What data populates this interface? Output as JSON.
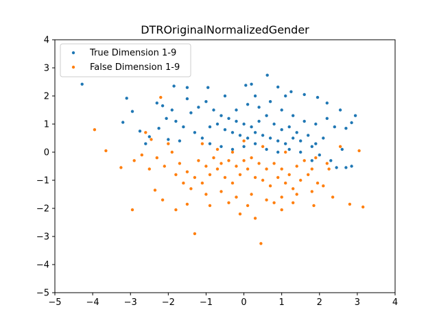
{
  "chart_data": {
    "type": "scatter",
    "title": "DTROriginalNormalizedGender",
    "xlabel": "",
    "ylabel": "",
    "xlim": [
      -5,
      4
    ],
    "ylim": [
      -5,
      4
    ],
    "xticks": [
      -5,
      -4,
      -3,
      -2,
      -1,
      0,
      1,
      2,
      3,
      4
    ],
    "yticks": [
      -5,
      -4,
      -3,
      -2,
      -1,
      0,
      1,
      2,
      3,
      4
    ],
    "grid": false,
    "legend_position": "top-left",
    "series": [
      {
        "name": "True Dimension 1-9",
        "color": "#1f77b4",
        "points": [
          [
            -4.28,
            2.42
          ],
          [
            -3.1,
            1.92
          ],
          [
            -2.95,
            1.45
          ],
          [
            -3.2,
            1.06
          ],
          [
            -2.75,
            0.75
          ],
          [
            0.62,
            2.74
          ],
          [
            -1.85,
            2.35
          ],
          [
            -1.5,
            2.3
          ],
          [
            -0.95,
            2.3
          ],
          [
            0.2,
            2.42
          ],
          [
            0.05,
            2.38
          ],
          [
            0.9,
            2.32
          ],
          [
            1.25,
            2.15
          ],
          [
            1.6,
            2.05
          ],
          [
            1.95,
            1.95
          ],
          [
            2.2,
            1.75
          ],
          [
            2.55,
            1.5
          ],
          [
            2.85,
            1.05
          ],
          [
            2.95,
            1.3
          ],
          [
            2.7,
            0.85
          ],
          [
            2.6,
            0.1
          ],
          [
            2.85,
            -0.5
          ],
          [
            2.7,
            -0.55
          ],
          [
            2.45,
            -0.55
          ],
          [
            2.3,
            -0.3
          ],
          [
            -2.3,
            1.75
          ],
          [
            -2.15,
            1.65
          ],
          [
            -2.05,
            1.2
          ],
          [
            -2.25,
            0.85
          ],
          [
            -2.5,
            0.55
          ],
          [
            -2.6,
            0.3
          ],
          [
            -2.0,
            0.45
          ],
          [
            -1.7,
            0.4
          ],
          [
            1.8,
            -0.3
          ],
          [
            2.0,
            -0.1
          ],
          [
            -1.4,
            1.4
          ],
          [
            -1.2,
            1.6
          ],
          [
            -1.0,
            1.8
          ],
          [
            -0.8,
            1.5
          ],
          [
            -0.6,
            1.3
          ],
          [
            -0.4,
            1.2
          ],
          [
            -0.2,
            1.1
          ],
          [
            0.0,
            1.0
          ],
          [
            0.2,
            0.9
          ],
          [
            0.4,
            1.1
          ],
          [
            0.6,
            1.3
          ],
          [
            0.8,
            1.0
          ],
          [
            1.0,
            0.8
          ],
          [
            1.2,
            0.9
          ],
          [
            1.4,
            0.7
          ],
          [
            -0.9,
            0.9
          ],
          [
            -0.7,
            1.0
          ],
          [
            -0.5,
            0.8
          ],
          [
            -0.3,
            0.7
          ],
          [
            -0.1,
            0.6
          ],
          [
            0.1,
            0.5
          ],
          [
            0.3,
            0.7
          ],
          [
            0.5,
            0.6
          ],
          [
            0.7,
            0.5
          ],
          [
            0.9,
            0.4
          ],
          [
            1.1,
            0.3
          ],
          [
            1.3,
            0.5
          ],
          [
            1.5,
            0.4
          ],
          [
            1.7,
            0.6
          ],
          [
            1.9,
            0.3
          ],
          [
            -1.6,
            0.9
          ],
          [
            -1.8,
            1.1
          ],
          [
            -1.3,
            0.7
          ],
          [
            -1.1,
            0.5
          ],
          [
            -0.9,
            0.3
          ],
          [
            -0.6,
            0.2
          ],
          [
            -0.3,
            0.1
          ],
          [
            0.0,
            0.2
          ],
          [
            0.3,
            0.3
          ],
          [
            0.6,
            0.1
          ],
          [
            0.9,
            0.0
          ],
          [
            1.2,
            0.1
          ],
          [
            1.5,
            0.0
          ],
          [
            1.8,
            0.2
          ],
          [
            2.1,
            0.5
          ],
          [
            -0.2,
            1.5
          ],
          [
            0.1,
            1.7
          ],
          [
            0.4,
            1.6
          ],
          [
            0.7,
            1.8
          ],
          [
            1.0,
            1.5
          ],
          [
            1.3,
            1.3
          ],
          [
            1.6,
            1.1
          ],
          [
            1.9,
            1.0
          ],
          [
            2.2,
            1.2
          ],
          [
            2.4,
            0.9
          ],
          [
            -1.9,
            1.5
          ],
          [
            -1.5,
            1.9
          ],
          [
            -0.5,
            2.0
          ],
          [
            0.3,
            2.0
          ],
          [
            1.1,
            2.0
          ]
        ]
      },
      {
        "name": "False Dimension 1-9",
        "color": "#ff7f0e",
        "points": [
          [
            -3.95,
            0.8
          ],
          [
            -3.65,
            0.05
          ],
          [
            -3.25,
            -0.55
          ],
          [
            -2.95,
            -2.05
          ],
          [
            -2.9,
            -0.3
          ],
          [
            -1.3,
            -2.9
          ],
          [
            0.45,
            -3.25
          ],
          [
            0.3,
            -2.35
          ],
          [
            -0.1,
            -2.2
          ],
          [
            1.0,
            -2.05
          ],
          [
            1.85,
            -1.9
          ],
          [
            2.35,
            -1.6
          ],
          [
            2.8,
            -1.85
          ],
          [
            3.15,
            -1.95
          ],
          [
            3.05,
            0.05
          ],
          [
            2.55,
            0.2
          ],
          [
            2.25,
            -0.6
          ],
          [
            1.95,
            -1.1
          ],
          [
            -2.7,
            -0.1
          ],
          [
            -2.5,
            -0.6
          ],
          [
            -2.35,
            -1.35
          ],
          [
            -2.15,
            -1.7
          ],
          [
            -1.8,
            -2.05
          ],
          [
            -1.5,
            -1.85
          ],
          [
            -2.6,
            0.7
          ],
          [
            -2.45,
            0.45
          ],
          [
            -2.2,
            1.95
          ],
          [
            -2.0,
            0.3
          ],
          [
            -1.9,
            0.0
          ],
          [
            -1.7,
            -0.4
          ],
          [
            -1.5,
            -0.7
          ],
          [
            -1.3,
            -0.9
          ],
          [
            -1.1,
            -1.1
          ],
          [
            -0.9,
            -0.8
          ],
          [
            -0.7,
            -0.6
          ],
          [
            -0.5,
            -0.9
          ],
          [
            -0.3,
            -1.1
          ],
          [
            -0.1,
            -0.8
          ],
          [
            0.1,
            -0.6
          ],
          [
            0.3,
            -0.9
          ],
          [
            0.5,
            -1.0
          ],
          [
            0.7,
            -1.2
          ],
          [
            0.9,
            -0.9
          ],
          [
            1.1,
            -1.1
          ],
          [
            1.3,
            -1.3
          ],
          [
            1.5,
            -1.0
          ],
          [
            1.7,
            -0.8
          ],
          [
            -1.2,
            -0.3
          ],
          [
            -1.0,
            -0.5
          ],
          [
            -0.8,
            -0.2
          ],
          [
            -0.6,
            -0.4
          ],
          [
            -0.4,
            -0.3
          ],
          [
            -0.2,
            -0.5
          ],
          [
            0.0,
            -0.3
          ],
          [
            0.2,
            -0.2
          ],
          [
            0.4,
            -0.4
          ],
          [
            0.6,
            -0.6
          ],
          [
            0.8,
            -0.4
          ],
          [
            1.0,
            -0.6
          ],
          [
            1.2,
            -0.8
          ],
          [
            1.4,
            -0.5
          ],
          [
            1.6,
            -0.3
          ],
          [
            1.8,
            -0.6
          ],
          [
            -1.4,
            -1.3
          ],
          [
            -1.0,
            -1.5
          ],
          [
            -0.6,
            -1.4
          ],
          [
            -0.2,
            -1.6
          ],
          [
            0.2,
            -1.5
          ],
          [
            0.6,
            -1.7
          ],
          [
            1.0,
            -1.6
          ],
          [
            1.4,
            -1.5
          ],
          [
            1.8,
            -1.4
          ],
          [
            2.1,
            -1.2
          ],
          [
            -0.9,
            -1.9
          ],
          [
            -0.4,
            -1.8
          ],
          [
            0.1,
            -1.9
          ],
          [
            0.8,
            -1.8
          ],
          [
            1.3,
            -1.8
          ],
          [
            -1.6,
            -1.1
          ],
          [
            -1.8,
            -0.8
          ],
          [
            -2.1,
            -0.5
          ],
          [
            -2.3,
            -0.2
          ],
          [
            -0.7,
            0.1
          ],
          [
            -0.3,
            0.0
          ],
          [
            0.5,
            0.2
          ],
          [
            1.1,
            0.0
          ],
          [
            1.9,
            -0.2
          ],
          [
            2.2,
            -0.4
          ],
          [
            -1.1,
            0.3
          ],
          [
            0.0,
            0.4
          ]
        ]
      }
    ]
  }
}
